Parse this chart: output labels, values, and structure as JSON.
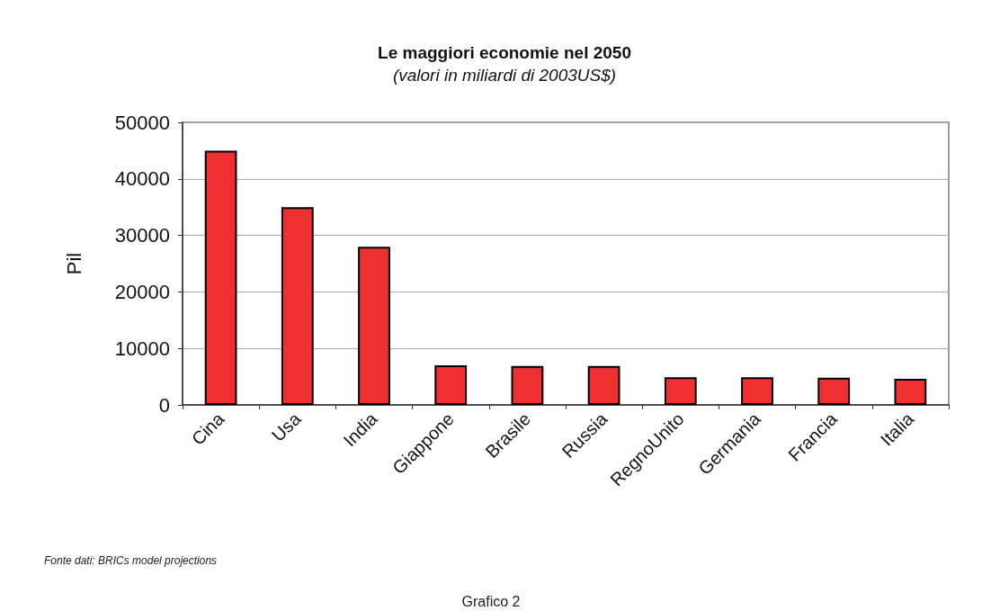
{
  "chart_data": {
    "type": "bar",
    "title": "Le maggiori economie nel 2050",
    "subtitle": "(valori in miliardi di 2003US$)",
    "ylabel": "Pil",
    "categories": [
      "Cina",
      "Usa",
      "India",
      "Giappone",
      "Brasile",
      "Russia",
      "RegnoUnito",
      "Germania",
      "Francia",
      "Italia"
    ],
    "values": [
      45000,
      35000,
      28000,
      7000,
      6900,
      6900,
      4900,
      4900,
      4800,
      4600
    ],
    "color": "#ee3130",
    "ylim": [
      0,
      50000
    ],
    "yticks": [
      0,
      10000,
      20000,
      30000,
      40000,
      50000
    ],
    "grid": "y",
    "annotations": [
      "Fonte dati: BRICs model projections",
      "Grafico 2"
    ]
  }
}
